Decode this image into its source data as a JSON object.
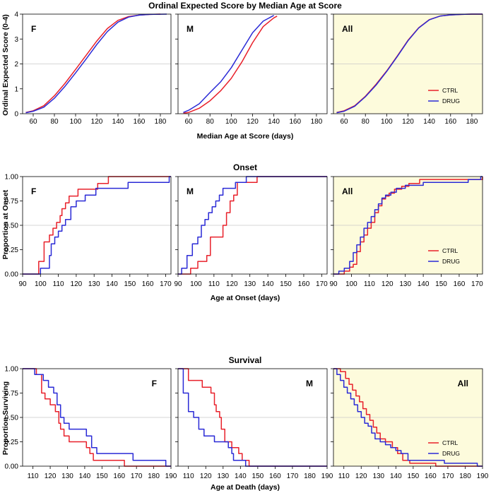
{
  "figure": {
    "title1": "Ordinal Expected Score by Median Age at Score",
    "title2": "Onset",
    "title3": "Survival"
  },
  "colors": {
    "ctrl": "#e8202a",
    "drug": "#2a2ad6",
    "highlight": "#fdfbdc",
    "grid": "#c8c8c8"
  },
  "legend": {
    "ctrl": "CTRL",
    "drug": "DRUG"
  },
  "chart_data": [
    {
      "id": "score",
      "type": "line",
      "xlabel": "Median Age at Score (days)",
      "ylabel": "Ordinal Expected Score (0-4)",
      "xlim": [
        50,
        190
      ],
      "ylim": [
        0,
        4
      ],
      "xticks": [
        60,
        80,
        100,
        120,
        140,
        160,
        180
      ],
      "yticks": [
        0,
        1,
        2,
        3,
        4
      ],
      "ytick_labels": [
        "0",
        "1",
        "2",
        "3",
        "4"
      ],
      "refline": 2,
      "panels": [
        {
          "label": "F",
          "label_pos": "top-left",
          "highlight": false,
          "legend": false,
          "series": [
            {
              "name": "CTRL",
              "step": false,
              "x": [
                53,
                60,
                70,
                80,
                90,
                100,
                110,
                120,
                130,
                140,
                150,
                160,
                170,
                180
              ],
              "y": [
                0.05,
                0.12,
                0.32,
                0.72,
                1.22,
                1.78,
                2.35,
                2.92,
                3.42,
                3.75,
                3.9,
                3.96,
                3.99,
                4.0
              ]
            },
            {
              "name": "DRUG",
              "step": false,
              "x": [
                53,
                60,
                70,
                80,
                90,
                100,
                110,
                120,
                130,
                140,
                150,
                160,
                170,
                186
              ],
              "y": [
                0.04,
                0.1,
                0.26,
                0.62,
                1.1,
                1.64,
                2.2,
                2.78,
                3.3,
                3.68,
                3.88,
                3.96,
                3.99,
                4.0
              ]
            }
          ]
        },
        {
          "label": "M",
          "label_pos": "top-left",
          "highlight": false,
          "legend": false,
          "series": [
            {
              "name": "CTRL",
              "step": false,
              "x": [
                55,
                60,
                70,
                80,
                90,
                100,
                110,
                120,
                130,
                140,
                143
              ],
              "y": [
                0.02,
                0.05,
                0.22,
                0.52,
                0.92,
                1.42,
                2.08,
                2.85,
                3.5,
                3.85,
                3.92
              ]
            },
            {
              "name": "DRUG",
              "step": false,
              "x": [
                55,
                60,
                70,
                80,
                90,
                100,
                110,
                120,
                130,
                140
              ],
              "y": [
                0.05,
                0.14,
                0.4,
                0.85,
                1.28,
                1.85,
                2.55,
                3.25,
                3.72,
                3.95
              ]
            }
          ]
        },
        {
          "label": "All",
          "label_pos": "top-left",
          "highlight": true,
          "legend": true,
          "series": [
            {
              "name": "CTRL",
              "step": false,
              "x": [
                53,
                60,
                70,
                80,
                90,
                100,
                110,
                120,
                130,
                140,
                150,
                160,
                170,
                180,
                190
              ],
              "y": [
                0.05,
                0.12,
                0.32,
                0.7,
                1.18,
                1.72,
                2.32,
                2.95,
                3.45,
                3.78,
                3.92,
                3.97,
                3.99,
                4.0,
                4.0
              ]
            },
            {
              "name": "DRUG",
              "step": false,
              "x": [
                53,
                60,
                70,
                80,
                90,
                100,
                110,
                120,
                130,
                140,
                150,
                160,
                170,
                180,
                190
              ],
              "y": [
                0.04,
                0.1,
                0.3,
                0.68,
                1.15,
                1.7,
                2.3,
                2.93,
                3.44,
                3.77,
                3.92,
                3.97,
                3.99,
                4.0,
                4.0
              ]
            }
          ]
        }
      ]
    },
    {
      "id": "onset",
      "type": "step",
      "xlabel": "Age at Onset (days)",
      "ylabel": "Proportion at Onset",
      "xlim": [
        90,
        173
      ],
      "ylim": [
        0,
        1
      ],
      "xticks": [
        90,
        100,
        110,
        120,
        130,
        140,
        150,
        160,
        170
      ],
      "yticks": [
        0,
        0.25,
        0.5,
        0.75,
        1
      ],
      "ytick_labels": [
        "0.00",
        "0.25",
        "0.50",
        "0.75",
        "1.00"
      ],
      "refline": 0.5,
      "panels": [
        {
          "label": "F",
          "label_pos": "top-left",
          "highlight": false,
          "legend": false,
          "series": [
            {
              "name": "CTRL",
              "step": true,
              "x": [
                90,
                99,
                102,
                105,
                107,
                109,
                111,
                112,
                114,
                116,
                118,
                121,
                125,
                132,
                138,
                173
              ],
              "y": [
                0,
                0.13,
                0.33,
                0.4,
                0.47,
                0.53,
                0.6,
                0.67,
                0.73,
                0.8,
                0.8,
                0.87,
                0.87,
                0.93,
                1.0,
                1.0
              ]
            },
            {
              "name": "DRUG",
              "step": true,
              "x": [
                90,
                100,
                105,
                106,
                108,
                110,
                112,
                114,
                117,
                120,
                125,
                131,
                149,
                172,
                173
              ],
              "y": [
                0,
                0.06,
                0.19,
                0.31,
                0.38,
                0.44,
                0.5,
                0.56,
                0.69,
                0.75,
                0.81,
                0.88,
                0.94,
                1.0,
                1.0
              ]
            }
          ]
        },
        {
          "label": "M",
          "label_pos": "top-left",
          "highlight": false,
          "legend": false,
          "series": [
            {
              "name": "CTRL",
              "step": true,
              "x": [
                90,
                97,
                101,
                106,
                108,
                113,
                115,
                117,
                119,
                121,
                123,
                134,
                173
              ],
              "y": [
                0,
                0.06,
                0.13,
                0.19,
                0.38,
                0.38,
                0.5,
                0.63,
                0.75,
                0.81,
                0.94,
                1.0,
                1.0
              ]
            },
            {
              "name": "DRUG",
              "step": true,
              "x": [
                90,
                92,
                95,
                98,
                101,
                103,
                105,
                107,
                109,
                111,
                113,
                115,
                118,
                122,
                124,
                128,
                173
              ],
              "y": [
                0,
                0.06,
                0.19,
                0.31,
                0.38,
                0.5,
                0.56,
                0.63,
                0.69,
                0.75,
                0.81,
                0.88,
                0.88,
                0.94,
                0.94,
                1.0,
                1.0
              ]
            }
          ]
        },
        {
          "label": "All",
          "label_pos": "top-left",
          "highlight": true,
          "legend": true,
          "series": [
            {
              "name": "CTRL",
              "step": true,
              "x": [
                90,
                96,
                99,
                101,
                103,
                105,
                107,
                109,
                111,
                113,
                115,
                117,
                119,
                121,
                124,
                128,
                132,
                138,
                173
              ],
              "y": [
                0,
                0.03,
                0.07,
                0.1,
                0.23,
                0.33,
                0.4,
                0.47,
                0.53,
                0.63,
                0.7,
                0.77,
                0.8,
                0.83,
                0.87,
                0.9,
                0.93,
                0.97,
                1.0
              ]
            },
            {
              "name": "DRUG",
              "step": true,
              "x": [
                90,
                93,
                96,
                99,
                101,
                103,
                105,
                107,
                109,
                111,
                113,
                115,
                117,
                119,
                122,
                125,
                130,
                140,
                150,
                165,
                172,
                173
              ],
              "y": [
                0,
                0.03,
                0.06,
                0.13,
                0.22,
                0.3,
                0.38,
                0.47,
                0.53,
                0.59,
                0.66,
                0.72,
                0.78,
                0.81,
                0.84,
                0.88,
                0.91,
                0.94,
                0.94,
                0.97,
                1.0,
                1.0
              ]
            }
          ]
        }
      ]
    },
    {
      "id": "survival",
      "type": "step",
      "xlabel": "Age at Death (days)",
      "ylabel": "Proportion Surviving",
      "xlim": [
        104,
        190
      ],
      "ylim": [
        0,
        1
      ],
      "xticks": [
        110,
        120,
        130,
        140,
        150,
        160,
        170,
        180,
        190
      ],
      "yticks": [
        0,
        0.25,
        0.5,
        0.75,
        1
      ],
      "ytick_labels": [
        "0.00",
        "0.25",
        "0.50",
        "0.75",
        "1.00"
      ],
      "refline": 0.5,
      "panels": [
        {
          "label": "F",
          "label_pos": "top-right",
          "highlight": false,
          "legend": false,
          "series": [
            {
              "name": "CTRL",
              "step": true,
              "x": [
                104,
                112,
                115,
                117,
                120,
                123,
                125,
                126,
                128,
                131,
                135,
                141,
                143,
                145,
                163,
                190
              ],
              "y": [
                1.0,
                0.94,
                0.75,
                0.69,
                0.63,
                0.56,
                0.44,
                0.38,
                0.31,
                0.25,
                0.25,
                0.19,
                0.13,
                0.06,
                0.0,
                0.0
              ]
            },
            {
              "name": "DRUG",
              "step": true,
              "x": [
                104,
                111,
                116,
                119,
                122,
                124,
                126,
                128,
                131,
                141,
                144,
                147,
                168,
                187,
                190
              ],
              "y": [
                1.0,
                0.94,
                0.88,
                0.81,
                0.75,
                0.63,
                0.5,
                0.44,
                0.38,
                0.31,
                0.19,
                0.13,
                0.06,
                0.0,
                0.0
              ]
            }
          ]
        },
        {
          "label": "M",
          "label_pos": "top-right",
          "highlight": false,
          "legend": false,
          "series": [
            {
              "name": "CTRL",
              "step": true,
              "x": [
                104,
                110,
                115,
                118,
                123,
                125,
                126,
                128,
                129,
                131,
                135,
                139,
                141,
                145,
                190
              ],
              "y": [
                1.0,
                0.88,
                0.88,
                0.81,
                0.75,
                0.63,
                0.56,
                0.5,
                0.38,
                0.25,
                0.19,
                0.13,
                0.06,
                0.0,
                0.0
              ]
            },
            {
              "name": "DRUG",
              "step": true,
              "x": [
                104,
                107,
                110,
                113,
                116,
                119,
                121,
                125,
                133,
                135,
                136,
                142,
                143,
                190
              ],
              "y": [
                1.0,
                0.75,
                0.56,
                0.5,
                0.38,
                0.31,
                0.31,
                0.25,
                0.19,
                0.13,
                0.06,
                0.06,
                0.0,
                0.0
              ]
            }
          ]
        },
        {
          "label": "All",
          "label_pos": "top-right",
          "highlight": true,
          "legend": true,
          "series": [
            {
              "name": "CTRL",
              "step": true,
              "x": [
                104,
                108,
                111,
                113,
                115,
                117,
                119,
                121,
                123,
                125,
                127,
                129,
                131,
                134,
                138,
                141,
                144,
                148,
                163,
                190
              ],
              "y": [
                1.0,
                0.97,
                0.9,
                0.84,
                0.78,
                0.72,
                0.66,
                0.59,
                0.53,
                0.47,
                0.4,
                0.34,
                0.28,
                0.25,
                0.19,
                0.13,
                0.06,
                0.03,
                0.0,
                0.0
              ]
            },
            {
              "name": "DRUG",
              "step": true,
              "x": [
                104,
                106,
                108,
                110,
                112,
                114,
                116,
                118,
                120,
                122,
                124,
                126,
                128,
                131,
                134,
                137,
                140,
                143,
                147,
                168,
                187,
                190
              ],
              "y": [
                1.0,
                0.94,
                0.88,
                0.81,
                0.75,
                0.69,
                0.63,
                0.56,
                0.5,
                0.44,
                0.41,
                0.34,
                0.28,
                0.25,
                0.22,
                0.19,
                0.16,
                0.13,
                0.06,
                0.03,
                0.0,
                0.0
              ]
            }
          ]
        }
      ]
    }
  ]
}
